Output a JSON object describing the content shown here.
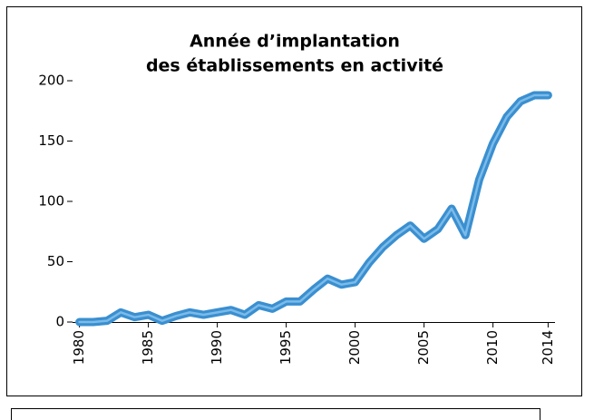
{
  "chart_data": {
    "type": "line",
    "title": [
      "Année d’implantation",
      "des établissements en activité"
    ],
    "x": [
      1980,
      1981,
      1982,
      1983,
      1984,
      1985,
      1986,
      1987,
      1988,
      1989,
      1990,
      1991,
      1992,
      1993,
      1994,
      1995,
      1996,
      1997,
      1998,
      1999,
      2000,
      2001,
      2002,
      2003,
      2004,
      2005,
      2006,
      2007,
      2008,
      2009,
      2010,
      2011,
      2012,
      2013,
      2014
    ],
    "series": [
      {
        "color": "#3a8fd0",
        "values": [
          0,
          0,
          1,
          8,
          4,
          6,
          1,
          5,
          8,
          6,
          8,
          10,
          6,
          14,
          11,
          17,
          17,
          27,
          36,
          31,
          33,
          49,
          62,
          72,
          80,
          69,
          77,
          94,
          72,
          118,
          148,
          170,
          183,
          188,
          188
        ]
      }
    ],
    "xlim": [
      1979.5,
      2014.5
    ],
    "xticks": [
      1980,
      1985,
      1990,
      1995,
      2000,
      2005,
      2010,
      2014
    ],
    "ylim": [
      0,
      200
    ],
    "yticks": [
      0,
      50,
      100,
      150,
      200
    ]
  }
}
